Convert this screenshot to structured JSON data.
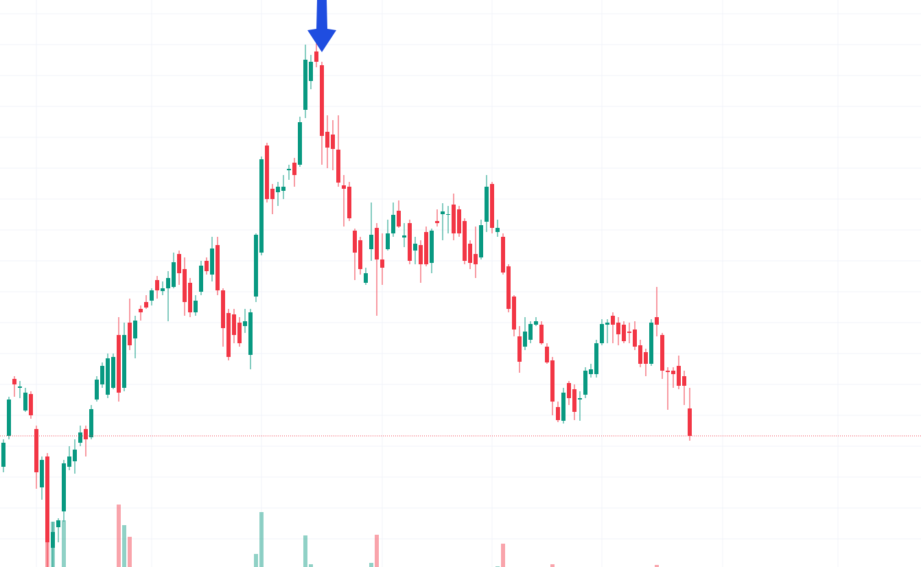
{
  "chart_data": {
    "type": "candlestick",
    "open": [
      146,
      191,
      274,
      261,
      228,
      252,
      201,
      116,
      161,
      28,
      58,
      81,
      146,
      154,
      181,
      201,
      189,
      244,
      266,
      251,
      261,
      338,
      261,
      356,
      333,
      376,
      386,
      388,
      418,
      402,
      406,
      408,
      456,
      434,
      414,
      371,
      401,
      446,
      426,
      469,
      403,
      370,
      368,
      356,
      351,
      309,
      394,
      458,
      614,
      551,
      546,
      548,
      578,
      589,
      586,
      666,
      708,
      751,
      731,
      634,
      630,
      608,
      556,
      554,
      490,
      476,
      414,
      463,
      494,
      448,
      463,
      486,
      519,
      480,
      501,
      461,
      469,
      488,
      443,
      504,
      514,
      513,
      528,
      521,
      504,
      471,
      456,
      451,
      503,
      558,
      488,
      481,
      438,
      394,
      336,
      321,
      331,
      353,
      353,
      321,
      301,
      233,
      213,
      268,
      259,
      244,
      251,
      281,
      281,
      326,
      353,
      366,
      356,
      353,
      343,
      346,
      323,
      313,
      296,
      364,
      338,
      286,
      286,
      293,
      278,
      231
    ],
    "high": [
      186,
      248,
      278,
      271,
      261,
      256,
      206,
      161,
      166,
      66,
      71,
      156,
      176,
      186,
      206,
      206,
      236,
      278,
      298,
      311,
      311,
      364,
      356,
      391,
      366,
      381,
      396,
      406,
      424,
      416,
      431,
      458,
      461,
      451,
      421,
      396,
      446,
      451,
      481,
      481,
      406,
      376,
      376,
      364,
      376,
      376,
      486,
      598,
      618,
      558,
      561,
      571,
      586,
      596,
      656,
      761,
      746,
      764,
      736,
      658,
      651,
      658,
      571,
      561,
      493,
      481,
      436,
      531,
      501,
      486,
      506,
      531,
      534,
      501,
      506,
      481,
      476,
      496,
      493,
      521,
      530,
      526,
      544,
      526,
      508,
      476,
      496,
      506,
      571,
      561,
      506,
      486,
      441,
      396,
      351,
      364,
      358,
      364,
      358,
      326,
      306,
      241,
      261,
      271,
      266,
      256,
      291,
      296,
      331,
      361,
      361,
      371,
      364,
      358,
      356,
      358,
      331,
      318,
      361,
      408,
      341,
      291,
      291,
      308,
      286,
      261
    ],
    "low": [
      138,
      186,
      248,
      246,
      226,
      216,
      114,
      98,
      0,
      0,
      36,
      66,
      141,
      136,
      176,
      161,
      186,
      241,
      261,
      246,
      259,
      241,
      256,
      316,
      304,
      359,
      376,
      381,
      391,
      396,
      358,
      406,
      411,
      366,
      364,
      366,
      396,
      426,
      416,
      396,
      321,
      301,
      326,
      321,
      341,
      288,
      386,
      454,
      531,
      514,
      526,
      536,
      564,
      554,
      583,
      654,
      696,
      728,
      586,
      581,
      578,
      554,
      496,
      504,
      418,
      426,
      411,
      446,
      366,
      411,
      461,
      481,
      494,
      466,
      441,
      441,
      414,
      438,
      428,
      496,
      476,
      486,
      476,
      481,
      441,
      434,
      421,
      448,
      488,
      486,
      481,
      426,
      371,
      336,
      283,
      316,
      326,
      351,
      324,
      296,
      221,
      211,
      209,
      236,
      214,
      213,
      246,
      276,
      276,
      323,
      326,
      326,
      323,
      326,
      326,
      316,
      291,
      278,
      293,
      336,
      274,
      229,
      261,
      259,
      236,
      184
    ],
    "close": [
      181,
      244,
      266,
      263,
      254,
      221,
      138,
      156,
      36,
      51,
      68,
      151,
      161,
      171,
      196,
      186,
      230,
      273,
      293,
      304,
      306,
      254,
      338,
      323,
      359,
      371,
      378,
      403,
      403,
      406,
      421,
      444,
      428,
      386,
      371,
      388,
      439,
      431,
      464,
      403,
      348,
      306,
      338,
      326,
      358,
      371,
      484,
      594,
      536,
      536,
      554,
      554,
      580,
      571,
      648,
      739,
      736,
      736,
      628,
      611,
      609,
      560,
      551,
      508,
      458,
      434,
      428,
      484,
      448,
      436,
      486,
      513,
      496,
      483,
      446,
      471,
      441,
      441,
      490,
      501,
      518,
      514,
      486,
      486,
      446,
      443,
      441,
      498,
      554,
      494,
      494,
      429,
      376,
      346,
      299,
      343,
      354,
      358,
      326,
      298,
      241,
      214,
      254,
      246,
      226,
      246,
      286,
      288,
      326,
      354,
      356,
      353,
      339,
      329,
      341,
      321,
      296,
      296,
      356,
      353,
      286,
      284,
      281,
      264,
      264,
      191
    ],
    "volume": [
      0,
      0,
      0,
      0,
      0,
      0,
      0,
      0,
      36,
      66,
      0,
      68,
      0,
      0,
      0,
      0,
      0,
      0,
      0,
      0,
      0,
      91,
      61,
      44,
      0,
      0,
      0,
      0,
      0,
      0,
      0,
      0,
      0,
      0,
      0,
      0,
      0,
      0,
      0,
      0,
      0,
      0,
      0,
      0,
      0,
      0,
      19,
      80,
      0,
      0,
      0,
      0,
      0,
      0,
      0,
      46,
      4,
      0,
      0,
      0,
      0,
      0,
      0,
      0,
      0,
      0,
      0,
      6,
      47,
      0,
      0,
      0,
      0,
      0,
      0,
      0,
      0,
      0,
      0,
      0,
      0,
      0,
      0,
      0,
      0,
      0,
      0,
      0,
      0,
      0,
      1,
      34,
      0,
      0,
      0,
      0,
      0,
      0,
      0,
      0,
      4,
      0,
      0,
      0,
      0,
      0,
      0,
      0,
      0,
      0,
      0,
      0,
      0,
      0,
      0,
      0,
      0,
      0,
      0,
      3,
      0,
      0,
      0,
      0,
      0,
      0
    ],
    "up_color": "#089981",
    "down_color": "#f23645",
    "xlim": [
      -0.625,
      167.125
    ],
    "xticks": [
      6,
      27,
      47,
      69,
      89,
      109,
      131,
      152
    ],
    "ylim": [
      0,
      826
    ],
    "yticks": [
      806,
      761,
      716,
      671,
      626,
      581,
      536,
      491,
      446,
      401,
      356,
      311,
      266,
      221,
      176,
      131,
      86,
      41
    ],
    "y2lim": [
      0,
      826
    ],
    "grid": true
  }
}
